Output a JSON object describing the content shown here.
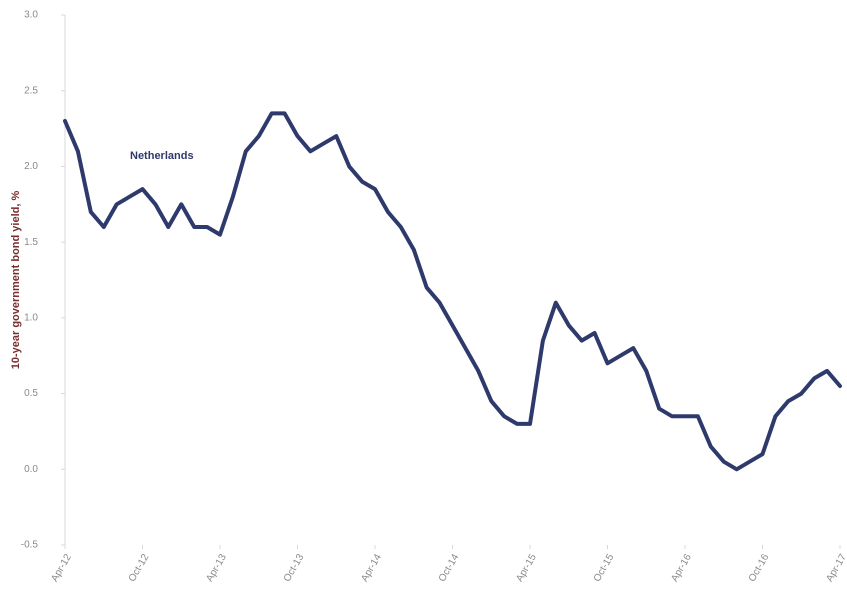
{
  "chart_data": {
    "type": "line",
    "y_label": "10-year government bond yield, %",
    "categories": [
      "Apr-12",
      null,
      null,
      null,
      null,
      null,
      "Oct-12",
      null,
      null,
      null,
      null,
      null,
      "Apr-13",
      null,
      null,
      null,
      null,
      null,
      "Oct-13",
      null,
      null,
      null,
      null,
      null,
      "Apr-14",
      null,
      null,
      null,
      null,
      null,
      "Oct-14",
      null,
      null,
      null,
      null,
      null,
      "Apr-15",
      null,
      null,
      null,
      null,
      null,
      "Oct-15",
      null,
      null,
      null,
      null,
      null,
      "Apr-16",
      null,
      null,
      null,
      null,
      null,
      "Oct-16",
      null,
      null,
      null,
      null,
      null,
      "Apr-17"
    ],
    "series": [
      {
        "name": "Netherlands",
        "color": "#2e3a6b",
        "values": [
          2.3,
          2.1,
          1.7,
          1.6,
          1.75,
          1.8,
          1.85,
          1.75,
          1.6,
          1.75,
          1.6,
          1.6,
          1.55,
          1.8,
          2.1,
          2.2,
          2.35,
          2.35,
          2.2,
          2.1,
          2.15,
          2.2,
          2.0,
          1.9,
          1.85,
          1.7,
          1.6,
          1.45,
          1.2,
          1.1,
          0.95,
          0.8,
          0.65,
          0.45,
          0.35,
          0.3,
          0.3,
          0.85,
          1.1,
          0.95,
          0.85,
          0.9,
          0.7,
          0.75,
          0.8,
          0.65,
          0.4,
          0.35,
          0.35,
          0.35,
          0.15,
          0.05,
          0.0,
          0.05,
          0.1,
          0.35,
          0.45,
          0.5,
          0.6,
          0.65,
          0.55
        ]
      }
    ],
    "ylim": [
      -0.5,
      3
    ],
    "yticks": [
      {
        "value": 3,
        "label": "3.0"
      },
      2.5,
      {
        "value": 2,
        "label": "2.0"
      },
      1.5,
      {
        "value": 1,
        "label": "1.0"
      },
      0.5,
      {
        "value": 0,
        "label": "0.0"
      },
      -0.5
    ],
    "grid": false
  }
}
